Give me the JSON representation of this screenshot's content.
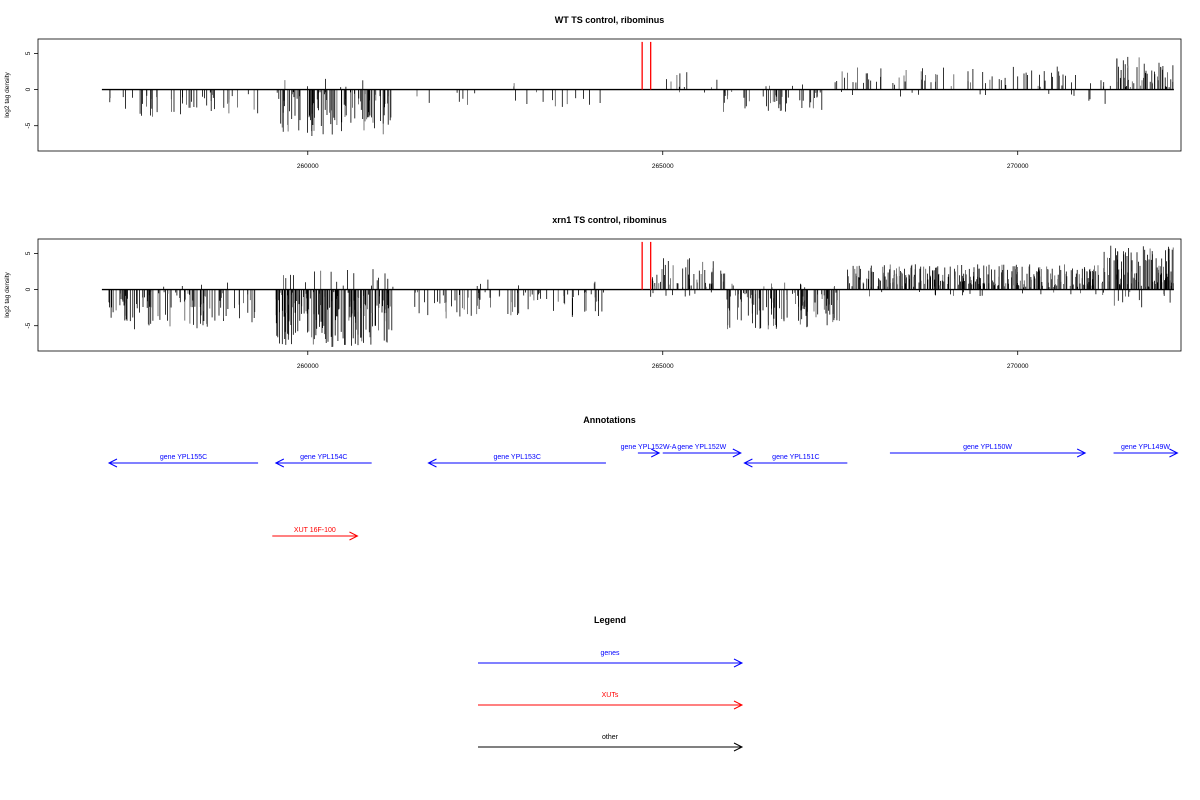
{
  "chart_data": [
    {
      "type": "bar",
      "title": "WT TS control, ribominus",
      "xlabel": "",
      "ylabel": "log2 tag density",
      "xlim": [
        256200,
        272300
      ],
      "ylim": [
        -8.5,
        7
      ],
      "xticks": [
        260000,
        265000,
        270000
      ],
      "xtick_labels": [
        "260000",
        "265000",
        "270000"
      ],
      "yticks": [
        5,
        0,
        -5
      ],
      "ytick_labels": [
        "5",
        "0",
        "-5"
      ],
      "baseline": {
        "from": 257100,
        "to": 272200
      },
      "highlight_marks": [
        {
          "x": 264710,
          "value": 6.6,
          "color": "#ff0000"
        },
        {
          "x": 264830,
          "value": 6.6,
          "color": "#ff0000"
        }
      ],
      "regions": [
        {
          "from": 257200,
          "to": 259300,
          "density": 0.35,
          "min": -4,
          "max": 0,
          "pos_frac": 0.0
        },
        {
          "from": 259550,
          "to": 261200,
          "density": 1.0,
          "min": -6.5,
          "max": 1.5,
          "pos_frac": 0.05
        },
        {
          "from": 261500,
          "to": 264200,
          "density": 0.18,
          "min": -2.5,
          "max": 1,
          "pos_frac": 0.05
        },
        {
          "from": 265000,
          "to": 265800,
          "density": 0.25,
          "min": -1,
          "max": 3,
          "pos_frac": 0.85
        },
        {
          "from": 265800,
          "to": 267300,
          "density": 0.5,
          "min": -3.2,
          "max": 1,
          "pos_frac": 0.15
        },
        {
          "from": 267400,
          "to": 270900,
          "density": 0.4,
          "min": -1,
          "max": 3.2,
          "pos_frac": 0.9
        },
        {
          "from": 270900,
          "to": 271300,
          "density": 0.3,
          "min": -2,
          "max": 2.5,
          "pos_frac": 0.7
        },
        {
          "from": 271300,
          "to": 272200,
          "density": 0.9,
          "min": -0.5,
          "max": 4.8,
          "pos_frac": 0.97
        }
      ]
    },
    {
      "type": "bar",
      "title": "xrn1 TS control, ribominus",
      "xlabel": "",
      "ylabel": "log2 tag density",
      "xlim": [
        256200,
        272300
      ],
      "ylim": [
        -8.5,
        7
      ],
      "xticks": [
        260000,
        265000,
        270000
      ],
      "xtick_labels": [
        "260000",
        "265000",
        "270000"
      ],
      "yticks": [
        5,
        0,
        -5
      ],
      "ytick_labels": [
        "5",
        "0",
        "-5"
      ],
      "baseline": {
        "from": 257100,
        "to": 272200
      },
      "highlight_marks": [
        {
          "x": 264710,
          "value": 6.6,
          "color": "#ff0000"
        },
        {
          "x": 264830,
          "value": 6.6,
          "color": "#ff0000"
        }
      ],
      "regions": [
        {
          "from": 257200,
          "to": 259300,
          "density": 0.8,
          "min": -5.5,
          "max": 1,
          "pos_frac": 0.05
        },
        {
          "from": 259550,
          "to": 261200,
          "density": 1.8,
          "min": -8,
          "max": 3,
          "pos_frac": 0.1
        },
        {
          "from": 261500,
          "to": 264200,
          "density": 0.5,
          "min": -4,
          "max": 1.5,
          "pos_frac": 0.08
        },
        {
          "from": 264800,
          "to": 265900,
          "density": 0.9,
          "min": -1,
          "max": 4.5,
          "pos_frac": 0.9
        },
        {
          "from": 265900,
          "to": 267500,
          "density": 1.2,
          "min": -5.5,
          "max": 1,
          "pos_frac": 0.12
        },
        {
          "from": 267600,
          "to": 271200,
          "density": 1.5,
          "min": -1,
          "max": 3.5,
          "pos_frac": 0.92
        },
        {
          "from": 271200,
          "to": 272200,
          "density": 1.8,
          "min": -2.5,
          "max": 6.2,
          "pos_frac": 0.9
        }
      ]
    }
  ],
  "annotations": {
    "title": "Annotations",
    "genes": [
      {
        "label": "gene YPL155C",
        "from": 257200,
        "to": 259300,
        "strand": "-",
        "color": "#0000ff",
        "row": 1
      },
      {
        "label": "gene YPL154C",
        "from": 259550,
        "to": 260900,
        "strand": "-",
        "color": "#0000ff",
        "row": 1
      },
      {
        "label": "gene YPL153C",
        "from": 261700,
        "to": 264200,
        "strand": "-",
        "color": "#0000ff",
        "row": 1
      },
      {
        "label": "gene YPL152W-A",
        "from": 264650,
        "to": 264950,
        "strand": "+",
        "color": "#0000ff",
        "row": 0
      },
      {
        "label": "gene YPL152W",
        "from": 265000,
        "to": 266100,
        "strand": "+",
        "color": "#0000ff",
        "row": 0
      },
      {
        "label": "gene YPL151C",
        "from": 266150,
        "to": 267600,
        "strand": "-",
        "color": "#0000ff",
        "row": 1
      },
      {
        "label": "gene YPL150W",
        "from": 268200,
        "to": 270950,
        "strand": "+",
        "color": "#0000ff",
        "row": 0
      },
      {
        "label": "gene YPL149W",
        "from": 271350,
        "to": 272250,
        "strand": "+",
        "color": "#0000ff",
        "row": 0
      },
      {
        "label": "XUT 16F-100",
        "from": 259500,
        "to": 260700,
        "strand": "+",
        "color": "#ff0000",
        "row": 2
      }
    ]
  },
  "legend": {
    "title": "Legend",
    "items": [
      {
        "label": "genes",
        "color": "#0000ff"
      },
      {
        "label": "XUTs",
        "color": "#ff0000"
      },
      {
        "label": "other",
        "color": "#000000"
      }
    ]
  }
}
